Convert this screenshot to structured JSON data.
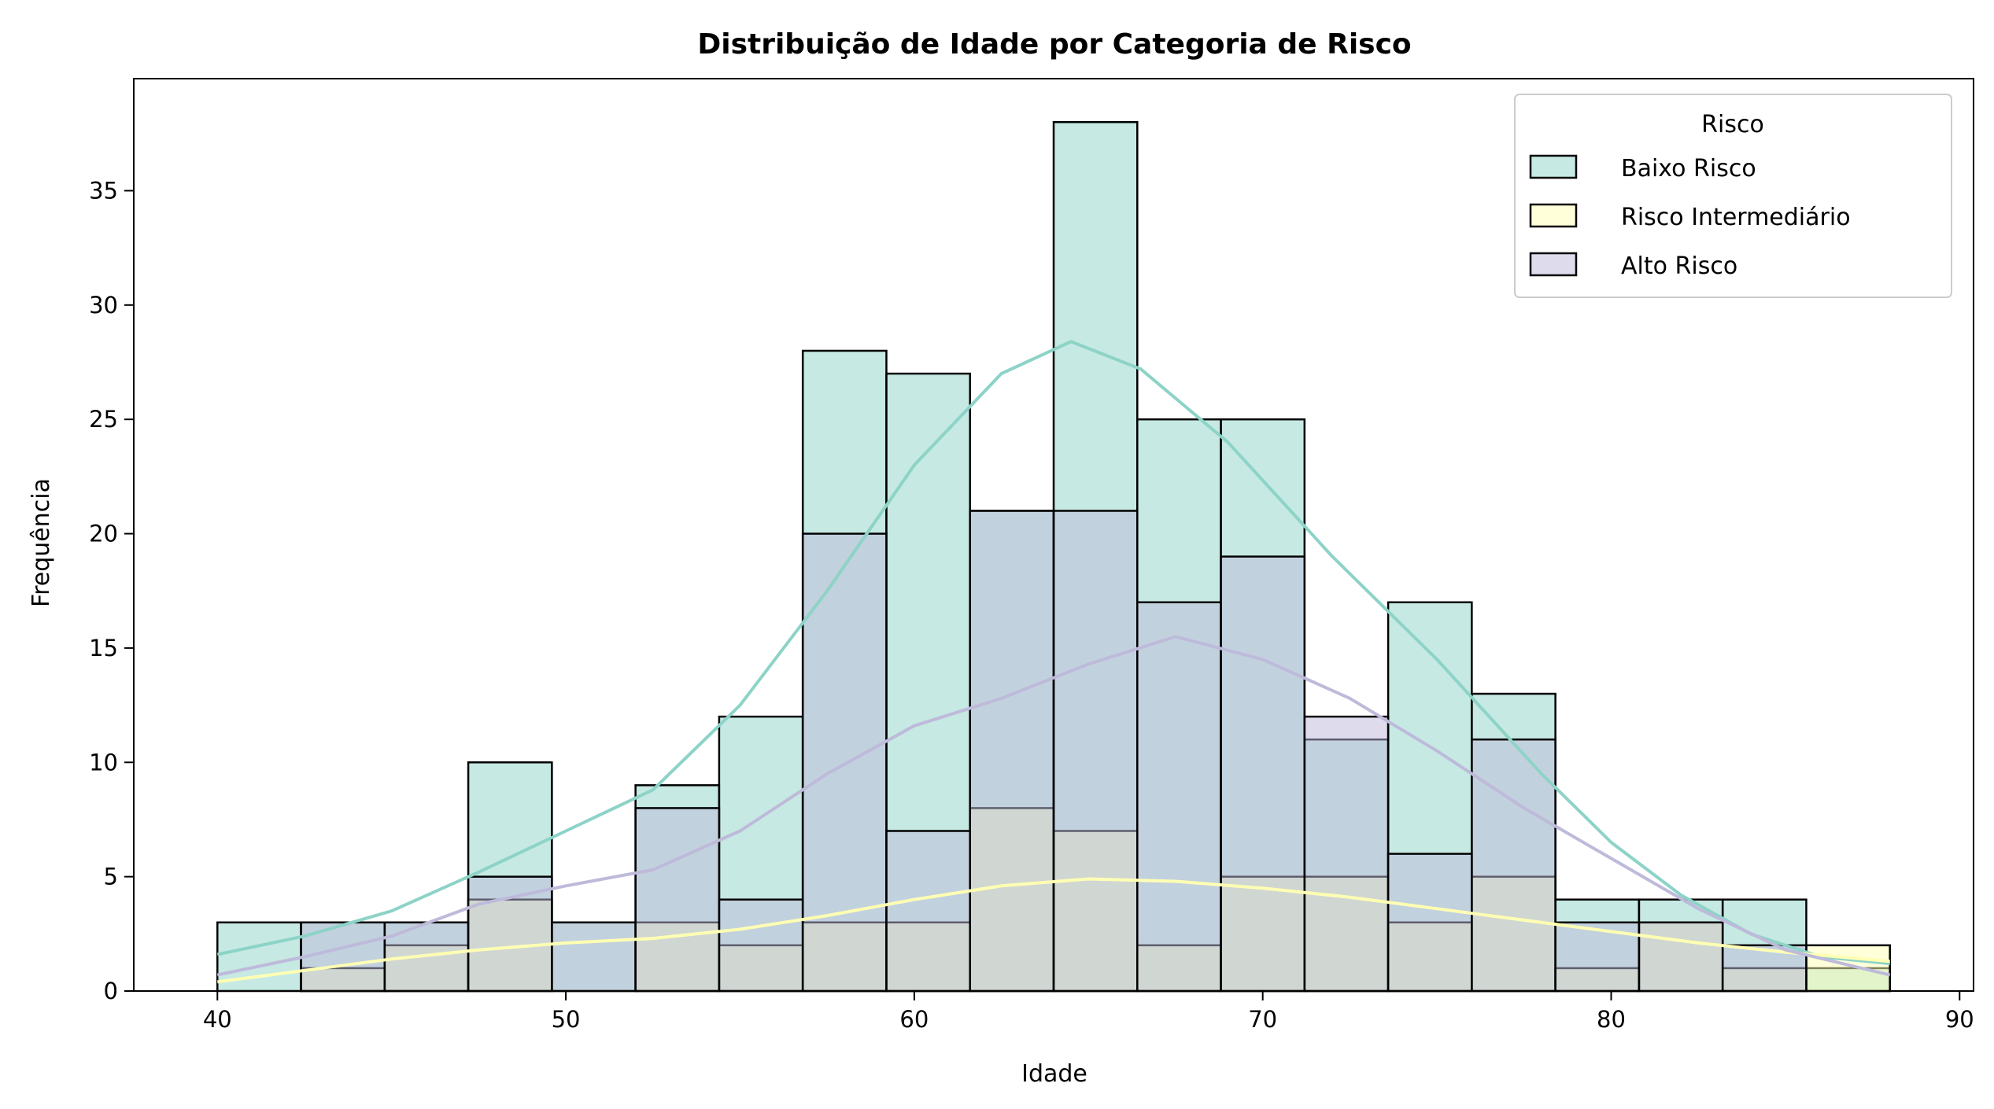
{
  "chart_data": {
    "type": "histogram",
    "title": "Distribuição de Idade por Categoria de Risco",
    "xlabel": "Idade",
    "ylabel": "Frequência",
    "xlim": [
      37.6,
      90.4
    ],
    "ylim": [
      0,
      39.9
    ],
    "x_ticks": [
      "40",
      "50",
      "60",
      "70",
      "80",
      "90"
    ],
    "y_ticks": [
      "0",
      "5",
      "10",
      "15",
      "20",
      "25",
      "30",
      "35"
    ],
    "bins": [
      40.0,
      42.4,
      44.8,
      47.2,
      49.6,
      52.0,
      54.4,
      56.8,
      59.2,
      61.6,
      64.0,
      66.4,
      68.8,
      71.2,
      73.6,
      76.0,
      78.4,
      80.8,
      83.2,
      85.6,
      88.0
    ],
    "legend": {
      "title": "Risco",
      "position": "top-right"
    },
    "grid": false,
    "series": [
      {
        "name": "Baixo Risco",
        "color": "#8dd3c7",
        "counts": [
          3,
          3,
          3,
          10,
          3,
          9,
          12,
          28,
          27,
          21,
          38,
          25,
          25,
          11,
          17,
          13,
          4,
          4,
          4,
          1
        ],
        "kde": [
          [
            40,
            1.6
          ],
          [
            42.5,
            2.4
          ],
          [
            45,
            3.5
          ],
          [
            47.5,
            5.2
          ],
          [
            50,
            7.0
          ],
          [
            52.5,
            8.8
          ],
          [
            55,
            12.5
          ],
          [
            57.5,
            17.5
          ],
          [
            60,
            23.0
          ],
          [
            62.5,
            27.0
          ],
          [
            64.5,
            28.4
          ],
          [
            66.5,
            27.2
          ],
          [
            69,
            24.0
          ],
          [
            72,
            19.0
          ],
          [
            75,
            14.5
          ],
          [
            78,
            9.5
          ],
          [
            80,
            6.5
          ],
          [
            82,
            4.2
          ],
          [
            84,
            2.5
          ],
          [
            86,
            1.5
          ],
          [
            88,
            1.2
          ]
        ]
      },
      {
        "name": "Risco Intermediário",
        "color": "#ffffb3",
        "counts": [
          0,
          1,
          2,
          4,
          0,
          3,
          2,
          3,
          3,
          8,
          7,
          2,
          5,
          5,
          3,
          5,
          1,
          3,
          1,
          2
        ],
        "kde": [
          [
            40,
            0.4
          ],
          [
            42.5,
            0.9
          ],
          [
            45,
            1.4
          ],
          [
            47.5,
            1.8
          ],
          [
            50,
            2.1
          ],
          [
            52.5,
            2.3
          ],
          [
            55,
            2.7
          ],
          [
            57.5,
            3.3
          ],
          [
            60,
            4.0
          ],
          [
            62.5,
            4.6
          ],
          [
            65,
            4.9
          ],
          [
            67.5,
            4.8
          ],
          [
            70,
            4.5
          ],
          [
            72.5,
            4.1
          ],
          [
            75,
            3.6
          ],
          [
            77.5,
            3.1
          ],
          [
            80,
            2.6
          ],
          [
            82.5,
            2.1
          ],
          [
            85,
            1.7
          ],
          [
            88,
            1.3
          ]
        ]
      },
      {
        "name": "Alto Risco",
        "color": "#bebada",
        "counts": [
          0,
          3,
          3,
          5,
          3,
          8,
          4,
          20,
          7,
          21,
          21,
          17,
          19,
          12,
          6,
          11,
          3,
          3,
          2,
          0
        ],
        "kde": [
          [
            40,
            0.7
          ],
          [
            42.5,
            1.5
          ],
          [
            45,
            2.4
          ],
          [
            47.5,
            3.8
          ],
          [
            50,
            4.6
          ],
          [
            52.5,
            5.3
          ],
          [
            55,
            7.0
          ],
          [
            57.5,
            9.5
          ],
          [
            60,
            11.6
          ],
          [
            62.5,
            12.8
          ],
          [
            65,
            14.3
          ],
          [
            67.5,
            15.5
          ],
          [
            70,
            14.5
          ],
          [
            72.5,
            12.8
          ],
          [
            75,
            10.5
          ],
          [
            77.5,
            8.0
          ],
          [
            80,
            5.8
          ],
          [
            82.5,
            3.6
          ],
          [
            85,
            1.8
          ],
          [
            88,
            0.7
          ]
        ]
      }
    ]
  }
}
